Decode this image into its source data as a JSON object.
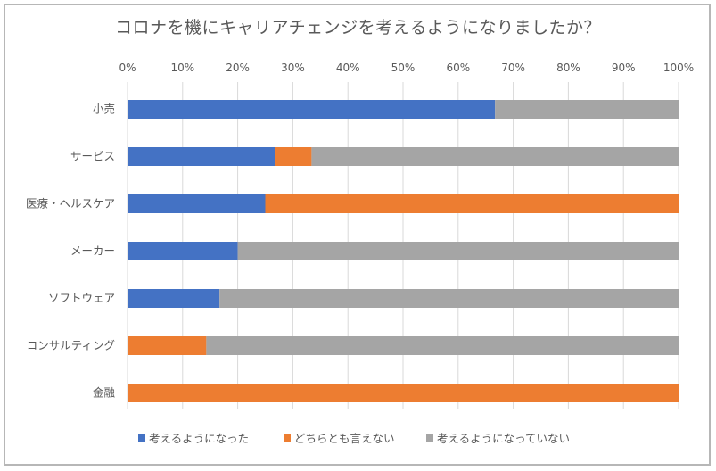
{
  "chart_data": {
    "type": "bar",
    "orientation": "horizontal",
    "stacked": true,
    "title": "コロナを機にキャリアチェンジを考えるようになりましたか？",
    "xlabel": "",
    "ylabel": "",
    "xlim": [
      0,
      100
    ],
    "x_ticks": [
      "0%",
      "10%",
      "20%",
      "30%",
      "40%",
      "50%",
      "60%",
      "70%",
      "80%",
      "90%",
      "100%"
    ],
    "x_axis_position": "top",
    "grid": true,
    "legend_position": "bottom",
    "categories": [
      "小売",
      "サービス",
      "医療・ヘルスケア",
      "メーカー",
      "ソフトウェア",
      "コンサルティング",
      "金融"
    ],
    "series": [
      {
        "name": "考えるようになった",
        "color": "#4472c4",
        "values": [
          66.7,
          26.7,
          25.0,
          20.0,
          16.7,
          0,
          0
        ]
      },
      {
        "name": "どちらとも言えない",
        "color": "#ed7d31",
        "values": [
          0,
          6.7,
          75.0,
          0,
          0,
          14.3,
          100
        ]
      },
      {
        "name": "考えるようになっていない",
        "color": "#a5a5a5",
        "values": [
          33.3,
          66.6,
          0,
          80.0,
          83.3,
          85.7,
          0
        ]
      }
    ]
  }
}
